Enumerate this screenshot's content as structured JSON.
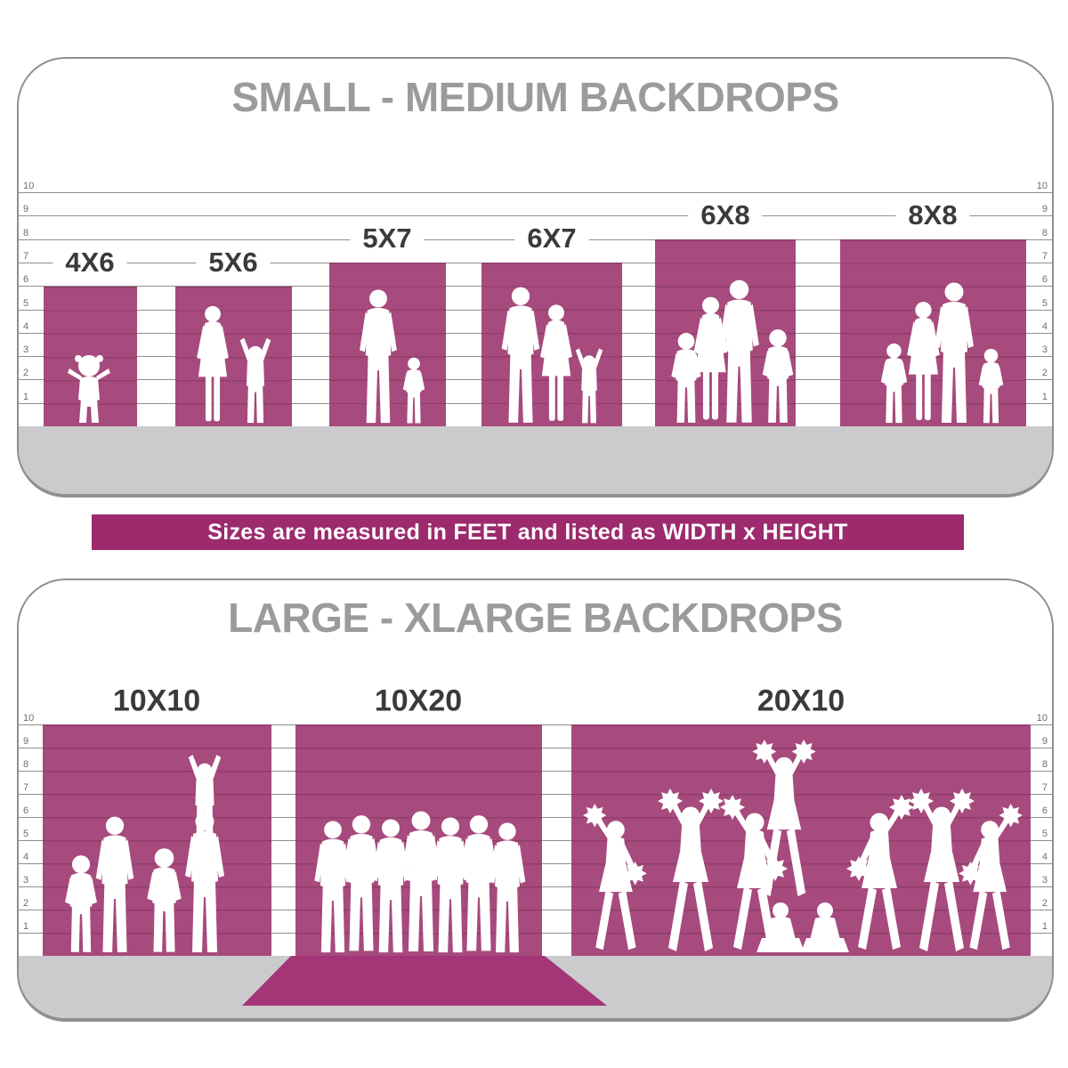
{
  "colors": {
    "backdrop": "#a74a7d",
    "banner_bg": "#9c2a6d",
    "carpet": "#a43577",
    "floor": "#cbcbce",
    "grid_line": "#8f8f8f",
    "title_gray": "#9b9b9d",
    "label_dark": "#3a3a3c",
    "ruler_text": "#6e6e6e",
    "silhouette": "#ffffff"
  },
  "banner": {
    "text": "Sizes are measured in FEET and listed as WIDTH x HEIGHT"
  },
  "ruler": {
    "unit": "FEET",
    "values": [
      "10",
      "9",
      "8",
      "7",
      "6",
      "5",
      "4",
      "3",
      "2",
      "1"
    ]
  },
  "sections": {
    "small_medium": {
      "title": "SMALL - MEDIUM BACKDROPS",
      "backdrops": [
        {
          "label": "4X6",
          "width_ft": 4,
          "height_ft": 6
        },
        {
          "label": "5X6",
          "width_ft": 5,
          "height_ft": 6
        },
        {
          "label": "5X7",
          "width_ft": 5,
          "height_ft": 7
        },
        {
          "label": "6X7",
          "width_ft": 6,
          "height_ft": 7
        },
        {
          "label": "6X8",
          "width_ft": 6,
          "height_ft": 8
        },
        {
          "label": "8X8",
          "width_ft": 8,
          "height_ft": 8
        }
      ]
    },
    "large_xlarge": {
      "title": "LARGE - XLARGE BACKDROPS",
      "backdrops": [
        {
          "label": "10X10",
          "width_ft": 10,
          "height_ft": 10
        },
        {
          "label": "10X20",
          "width_ft": 10,
          "height_ft": 20
        },
        {
          "label": "20X10",
          "width_ft": 20,
          "height_ft": 10
        }
      ]
    }
  }
}
